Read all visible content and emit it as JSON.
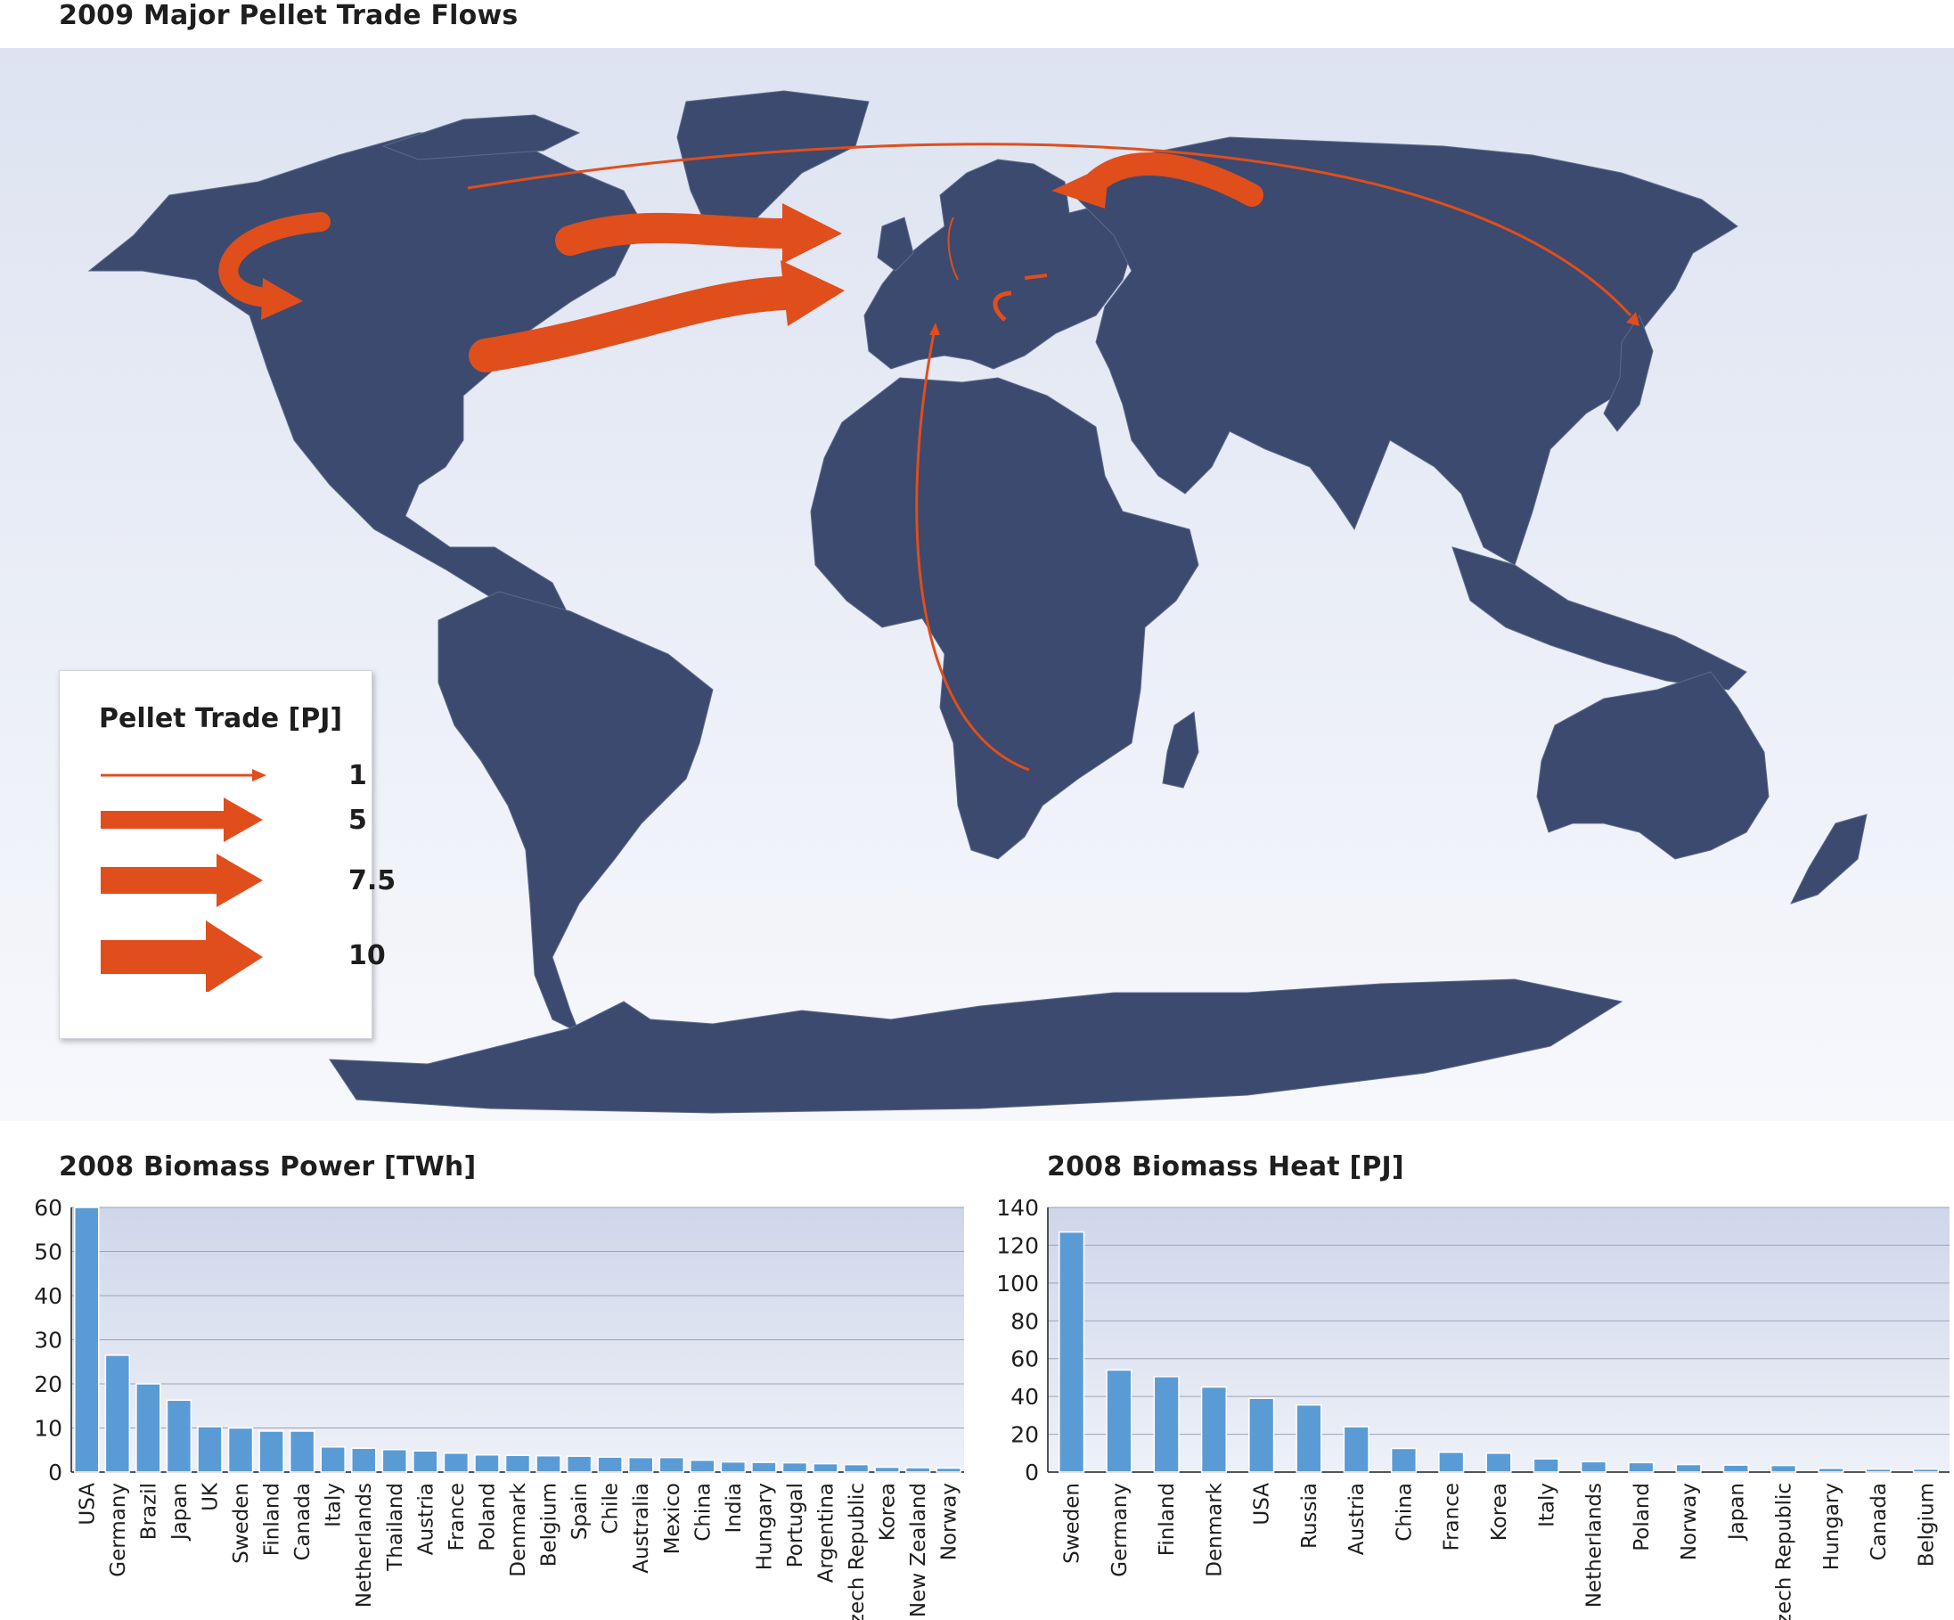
{
  "map": {
    "title": "2009 Major Pellet Trade Flows",
    "colors": {
      "land": "#3b4a6e",
      "ocean_top": "#dde3f1",
      "ocean_bottom": "#f6f8fc",
      "arrow": "#e04e1c"
    },
    "legend": {
      "title": "Pellet Trade [PJ]",
      "items": [
        {
          "label": "1",
          "value": 1
        },
        {
          "label": "5",
          "value": 5
        },
        {
          "label": "7.5",
          "value": 7.5
        },
        {
          "label": "10",
          "value": 10
        }
      ]
    }
  },
  "chart_data": [
    {
      "type": "bar",
      "title": "2008 Biomass Power [TWh]",
      "ylim": [
        0,
        60
      ],
      "yticks": [
        0,
        10,
        20,
        30,
        40,
        50,
        60
      ],
      "grid": true,
      "bar_color": "#5b9bd5",
      "categories": [
        "USA",
        "Germany",
        "Brazil",
        "Japan",
        "UK",
        "Sweden",
        "Finland",
        "Canada",
        "Italy",
        "Netherlands",
        "Thailand",
        "Austria",
        "France",
        "Poland",
        "Denmark",
        "Belgium",
        "Spain",
        "Chile",
        "Australia",
        "Mexico",
        "China",
        "India",
        "Hungary",
        "Portugal",
        "Argentina",
        "Czech Republic",
        "Korea",
        "New Zealand",
        "Norway"
      ],
      "values": [
        60,
        26.5,
        20,
        16.3,
        10.3,
        10,
        9.3,
        9.3,
        5.7,
        5.4,
        5.1,
        4.8,
        4.3,
        3.9,
        3.8,
        3.7,
        3.6,
        3.4,
        3.3,
        3.3,
        2.7,
        2.3,
        2.2,
        2.1,
        1.9,
        1.7,
        1.1,
        1.0,
        0.9
      ]
    },
    {
      "type": "bar",
      "title": "2008 Biomass Heat [PJ]",
      "ylim": [
        0,
        140
      ],
      "yticks": [
        0,
        20,
        40,
        60,
        80,
        100,
        120,
        140
      ],
      "grid": true,
      "bar_color": "#5b9bd5",
      "categories": [
        "Sweden",
        "Germany",
        "Finland",
        "Denmark",
        "USA",
        "Russia",
        "Austria",
        "China",
        "France",
        "Korea",
        "Italy",
        "Netherlands",
        "Poland",
        "Norway",
        "Japan",
        "Czech Republic",
        "Hungary",
        "Canada",
        "Belgium"
      ],
      "values": [
        127,
        54,
        50.5,
        45,
        39,
        35.5,
        24,
        12.5,
        10.5,
        10,
        7,
        5.5,
        5,
        4,
        3.7,
        3.5,
        2,
        1.6,
        1.6
      ]
    }
  ]
}
